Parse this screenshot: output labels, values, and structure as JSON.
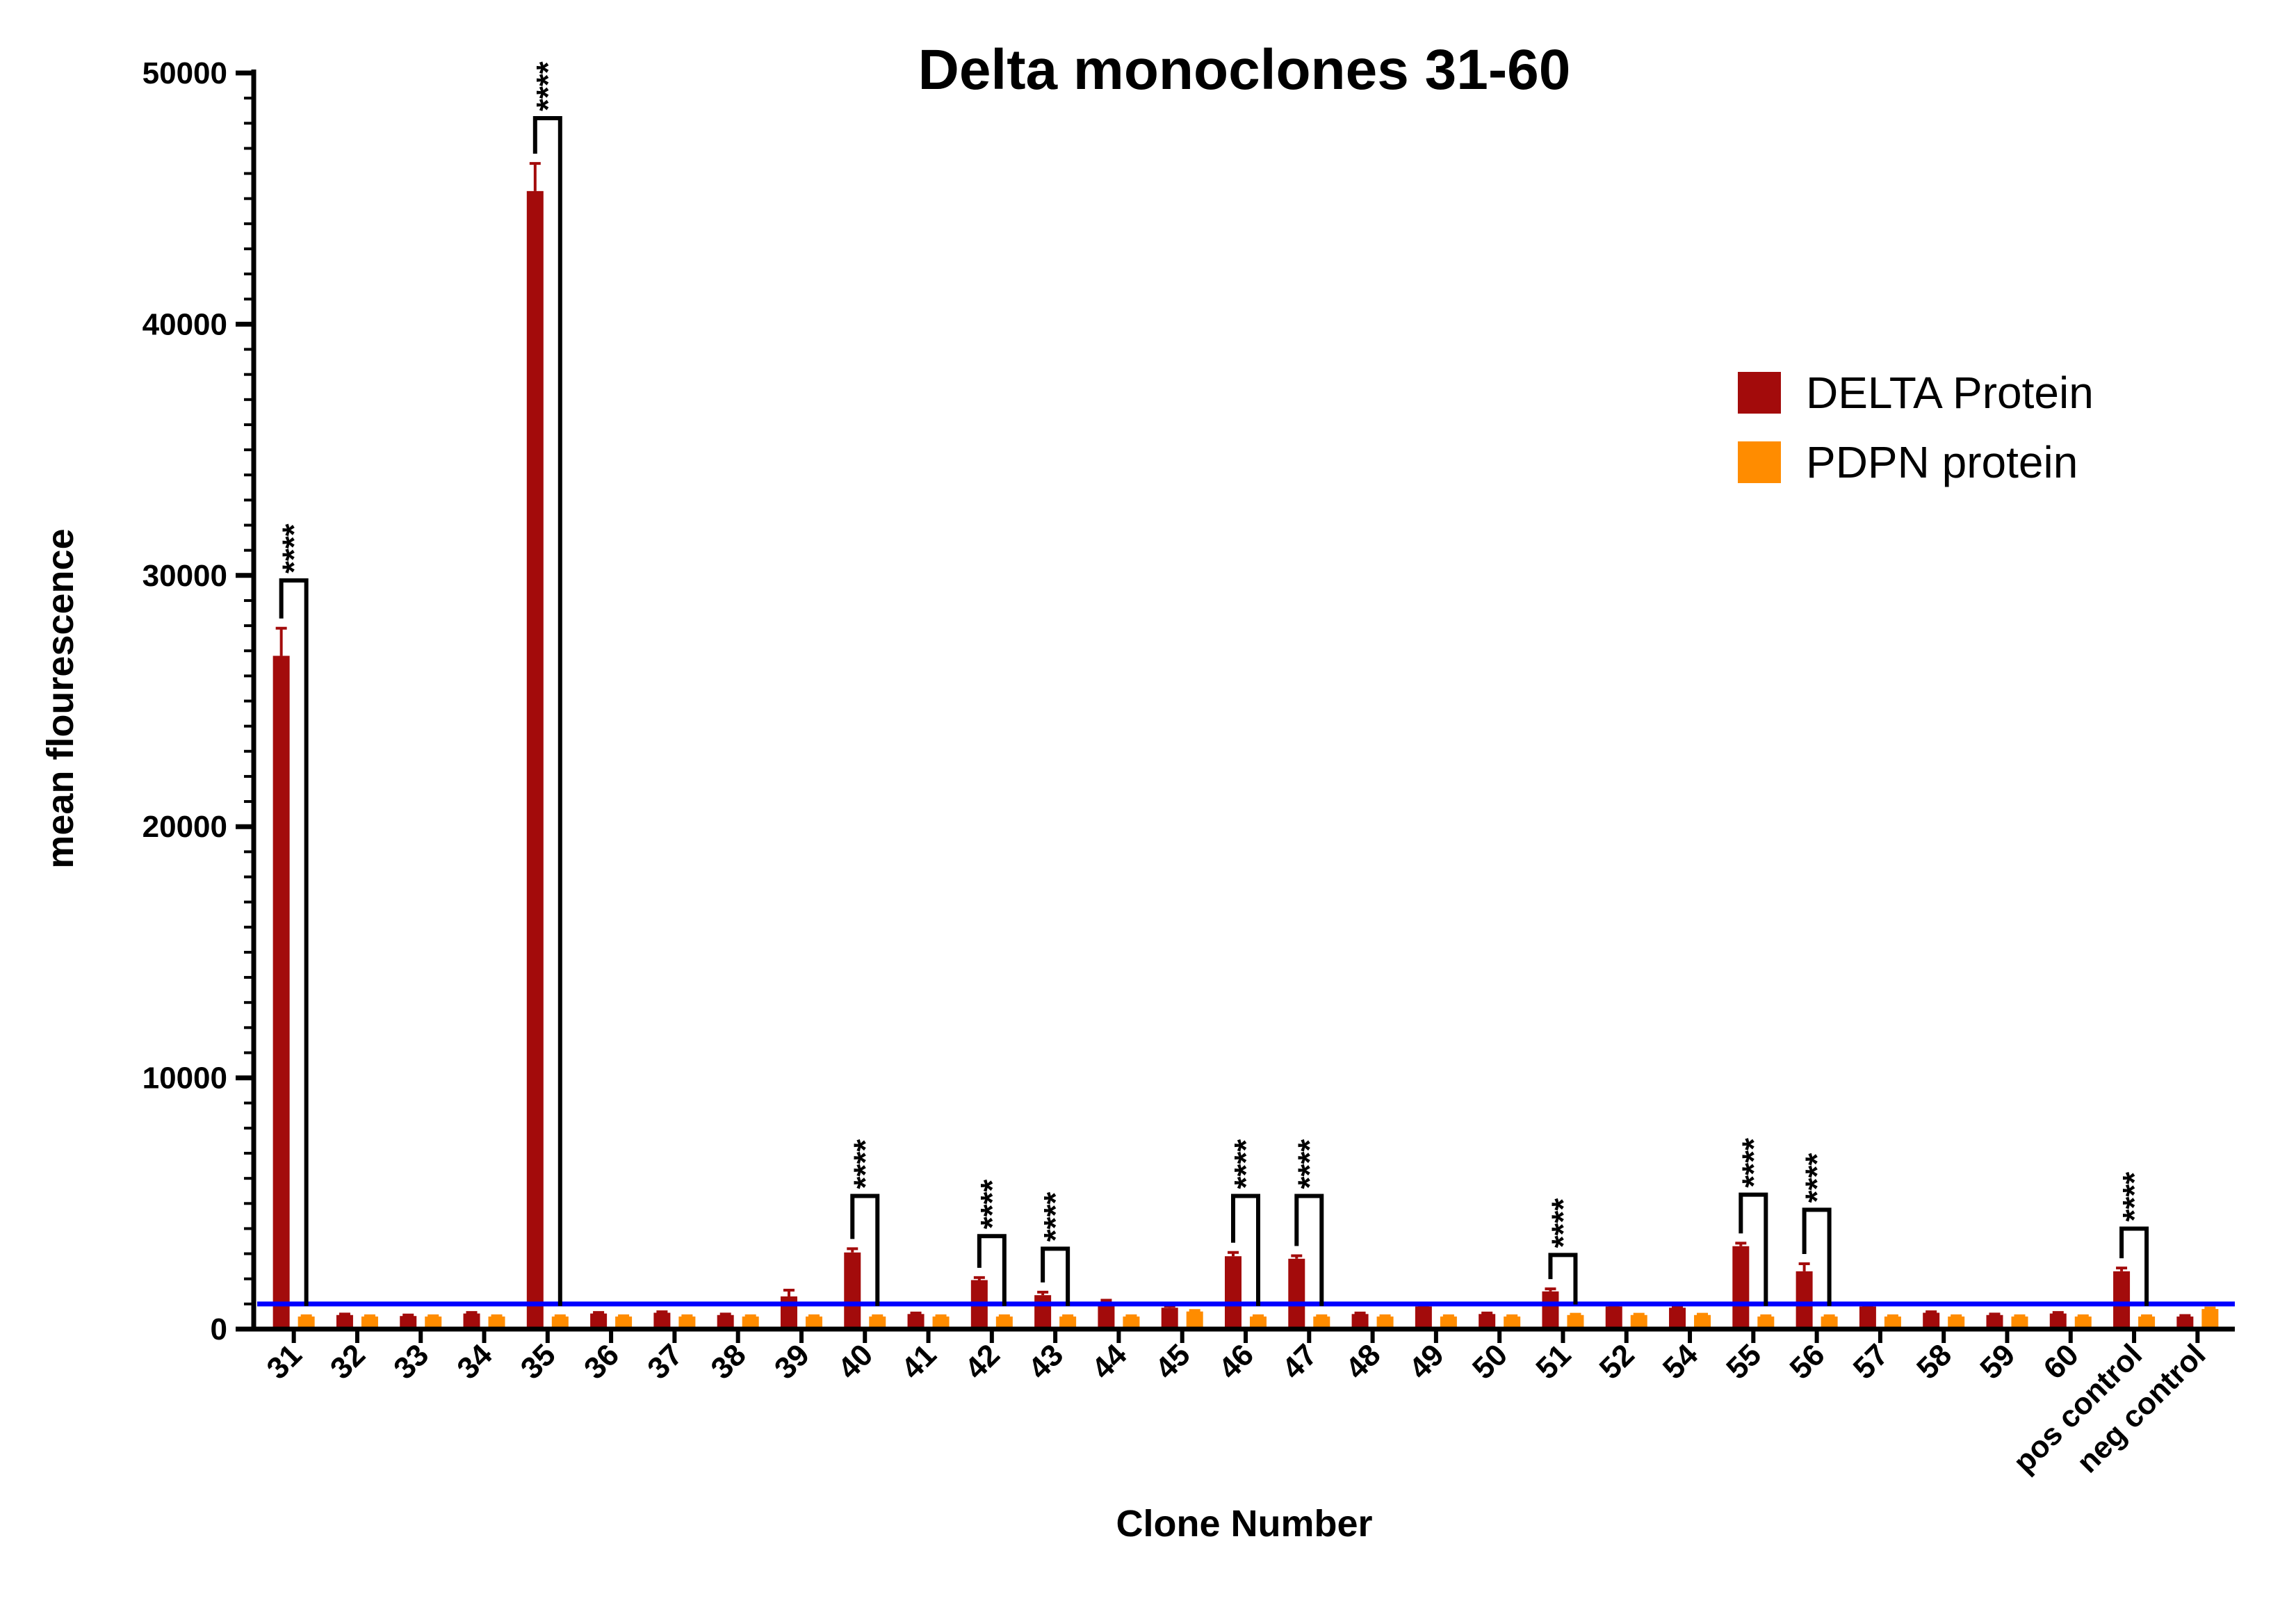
{
  "chart_data": {
    "type": "bar",
    "title": "Delta monoclones 31-60",
    "xlabel": "Clone Number",
    "ylabel": "mean flourescence",
    "ylim": [
      0,
      50000
    ],
    "yticks": [
      0,
      10000,
      20000,
      30000,
      40000,
      50000
    ],
    "categories": [
      "31",
      "32",
      "33",
      "34",
      "35",
      "36",
      "37",
      "38",
      "39",
      "40",
      "41",
      "42",
      "43",
      "44",
      "45",
      "46",
      "47",
      "48",
      "49",
      "50",
      "51",
      "52",
      "54",
      "55",
      "56",
      "57",
      "58",
      "59",
      "60",
      "pos control",
      "neg control"
    ],
    "series": [
      {
        "name": "DELTA Protein",
        "color": "#a30b0b",
        "values": [
          26800,
          560,
          520,
          620,
          45300,
          620,
          650,
          560,
          1300,
          3050,
          600,
          1950,
          1350,
          1000,
          850,
          2900,
          2800,
          600,
          900,
          600,
          1500,
          900,
          850,
          3300,
          2300,
          900,
          650,
          560,
          620,
          2300,
          500
        ],
        "errors": [
          1100,
          40,
          40,
          40,
          1100,
          40,
          40,
          40,
          250,
          150,
          40,
          100,
          120,
          150,
          60,
          150,
          120,
          40,
          50,
          40,
          100,
          50,
          50,
          120,
          300,
          50,
          40,
          40,
          40,
          130,
          40
        ]
      },
      {
        "name": "PDPN protein",
        "color": "#ff8c00",
        "values": [
          500,
          500,
          500,
          500,
          500,
          500,
          500,
          500,
          500,
          500,
          500,
          500,
          500,
          500,
          700,
          500,
          500,
          500,
          500,
          500,
          560,
          560,
          560,
          500,
          500,
          500,
          500,
          500,
          500,
          500,
          800
        ],
        "errors": [
          30,
          30,
          30,
          30,
          30,
          30,
          30,
          30,
          30,
          30,
          30,
          30,
          30,
          30,
          40,
          30,
          30,
          30,
          30,
          30,
          30,
          30,
          30,
          30,
          30,
          30,
          30,
          30,
          30,
          30,
          40
        ]
      }
    ],
    "threshold": {
      "value": 1000,
      "color": "#0000ff"
    },
    "significance": [
      {
        "category": "31",
        "label": "****",
        "bracket_top": 29800
      },
      {
        "category": "35",
        "label": "****",
        "bracket_top": 48200
      },
      {
        "category": "40",
        "label": "****",
        "bracket_top": 5300
      },
      {
        "category": "42",
        "label": "****",
        "bracket_top": 3700
      },
      {
        "category": "43",
        "label": "****",
        "bracket_top": 3200
      },
      {
        "category": "46",
        "label": "****",
        "bracket_top": 5300
      },
      {
        "category": "47",
        "label": "****",
        "bracket_top": 5300
      },
      {
        "category": "51",
        "label": "****",
        "bracket_top": 2950
      },
      {
        "category": "55",
        "label": "****",
        "bracket_top": 5350
      },
      {
        "category": "56",
        "label": "****",
        "bracket_top": 4750
      },
      {
        "category": "pos control",
        "label": "****",
        "bracket_top": 4000
      }
    ],
    "legend": {
      "position": "top-right"
    },
    "grid": false
  }
}
